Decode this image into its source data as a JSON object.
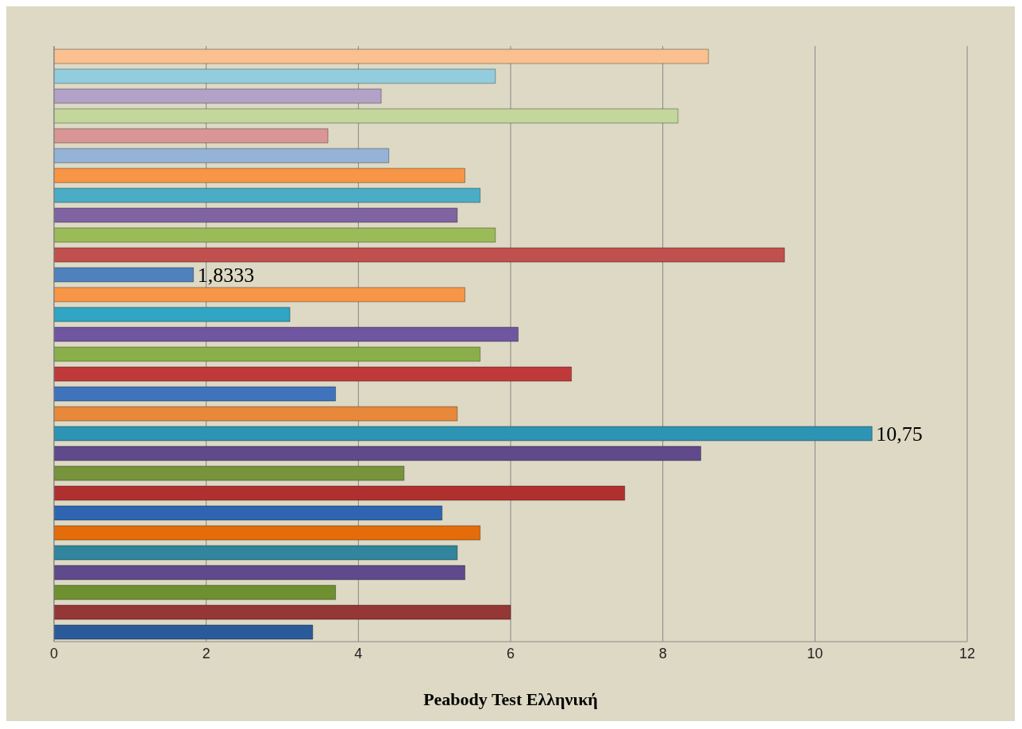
{
  "chart_data": {
    "type": "bar",
    "orientation": "horizontal",
    "xlabel": "Peabody Test Ελληνική",
    "categories": [
      null,
      null,
      null,
      null,
      null,
      null,
      null,
      null,
      null,
      null,
      null,
      null,
      null,
      null,
      null,
      null,
      null,
      null,
      null,
      null,
      null,
      null,
      null,
      null,
      null,
      null,
      null,
      null,
      null,
      null
    ],
    "values": [
      8.6,
      5.8,
      4.3,
      8.2,
      3.6,
      4.4,
      5.4,
      5.6,
      5.3,
      5.8,
      9.6,
      1.8333,
      5.4,
      3.1,
      6.1,
      5.6,
      6.8,
      3.7,
      5.3,
      10.75,
      8.5,
      4.6,
      7.5,
      5.1,
      5.6,
      5.3,
      5.4,
      3.7,
      6.0,
      3.4
    ],
    "value_labels": [
      null,
      null,
      null,
      null,
      null,
      null,
      null,
      null,
      null,
      null,
      null,
      "1,8333",
      null,
      null,
      null,
      null,
      null,
      null,
      null,
      "10,75",
      null,
      null,
      null,
      null,
      null,
      null,
      null,
      null,
      null,
      null
    ],
    "colors": [
      "#fac090",
      "#93cddd",
      "#b3a2c7",
      "#c3d69b",
      "#d99694",
      "#95b3d7",
      "#f79646",
      "#4bacc6",
      "#8064a2",
      "#9bbb59",
      "#c0504d",
      "#4f81bd",
      "#f79646",
      "#31a5c4",
      "#7056a0",
      "#8aaf4a",
      "#c0393a",
      "#3f74bd",
      "#e8883a",
      "#2e94b4",
      "#604a8b",
      "#77933c",
      "#b03030",
      "#2f65b0",
      "#e46c0a",
      "#31859c",
      "#5f4a8b",
      "#6f9030",
      "#953735",
      "#2a5a9a"
    ],
    "xlim": [
      0,
      12
    ],
    "xticks": [
      0,
      2,
      4,
      6,
      8,
      10,
      12
    ],
    "grid": "x",
    "tick_labels": "x"
  }
}
